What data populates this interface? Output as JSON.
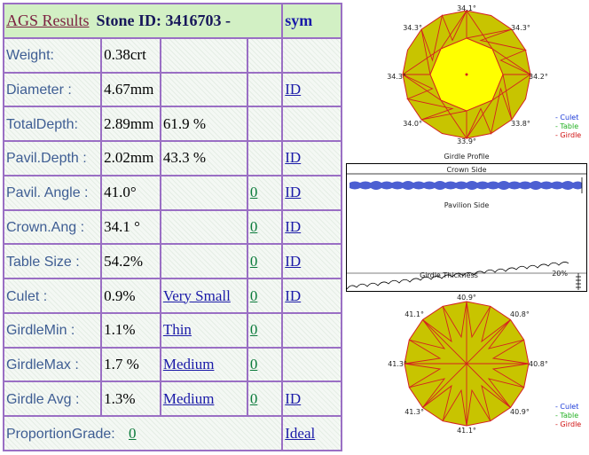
{
  "header": {
    "title_link": "AGS  Results",
    "stone": "Stone ID:  3416703 -",
    "sym": "sym"
  },
  "rows": [
    {
      "label": "Weight:",
      "value": "0.38crt",
      "extra": "",
      "grade": "",
      "link": ""
    },
    {
      "label": "Diameter :",
      "value": "4.67mm",
      "extra": "",
      "grade": "",
      "link": "ID"
    },
    {
      "label": "TotalDepth:",
      "value": "2.89mm",
      "extra": "61.9 %",
      "grade": "",
      "link": ""
    },
    {
      "label": "Pavil.Depth :",
      "value": "2.02mm",
      "extra": "43.3 %",
      "grade": "",
      "link": "ID"
    },
    {
      "label": "Pavil. Angle :",
      "value": "41.0°",
      "extra": "",
      "grade": "0",
      "link": "ID"
    },
    {
      "label": "Crown.Ang :",
      "value": "34.1 °",
      "extra": "",
      "grade": "0",
      "link": "ID"
    },
    {
      "label": "Table Size :",
      "value": "54.2%",
      "extra": "",
      "grade": "0",
      "link": "ID"
    },
    {
      "label": "Culet :",
      "value": "0.9%",
      "extra": "Very Small",
      "grade": "0",
      "link": "ID"
    },
    {
      "label": "GirdleMin :",
      "value": "1.1%",
      "extra": "Thin",
      "grade": "0",
      "link": ""
    },
    {
      "label": "GirdleMax :",
      "value": "1.7 %",
      "extra": "Medium",
      "grade": "0",
      "link": ""
    },
    {
      "label": "Girdle Avg :",
      "value": "1.3%",
      "extra": "Medium",
      "grade": "0",
      "link": "ID"
    }
  ],
  "footer": {
    "label": "ProportionGrade:",
    "grade": "0",
    "link": "Ideal"
  },
  "crown_diagram": {
    "angles": {
      "top": "34.1°",
      "top_left": "34.3°",
      "top_right": "34.3°",
      "left": "34.3°",
      "right": "34.2°",
      "bottom_left": "34.0°",
      "bottom_right": "33.8°",
      "bottom": "33.9°"
    },
    "caption": "Girdle Profile"
  },
  "girdle_profile": {
    "crown_label": "Crown Side",
    "pavilion_label": "Pavilion Side",
    "thickness_label": "Girdle Thickness",
    "scale_label": "20%"
  },
  "pavilion_diagram": {
    "angles": {
      "top": "40.9°",
      "top_left": "41.1°",
      "top_right": "40.8°",
      "left": "41.3°",
      "right": "40.8°",
      "bottom_left": "41.3°",
      "bottom_right": "40.9°",
      "bottom": "41.1°"
    }
  },
  "legend": {
    "culet": "- Culet",
    "table": "- Table",
    "girdle": "- Girdle"
  },
  "colors": {
    "border": "#9a6fc4",
    "header_bg": "#d2f0c4",
    "label": "#3e5d93",
    "link": "#1a1aa8",
    "grade_link": "#0a7a3a",
    "facet_fill": "#c8c400",
    "table_fill": "#ffff00",
    "facet_line": "#d42020"
  }
}
